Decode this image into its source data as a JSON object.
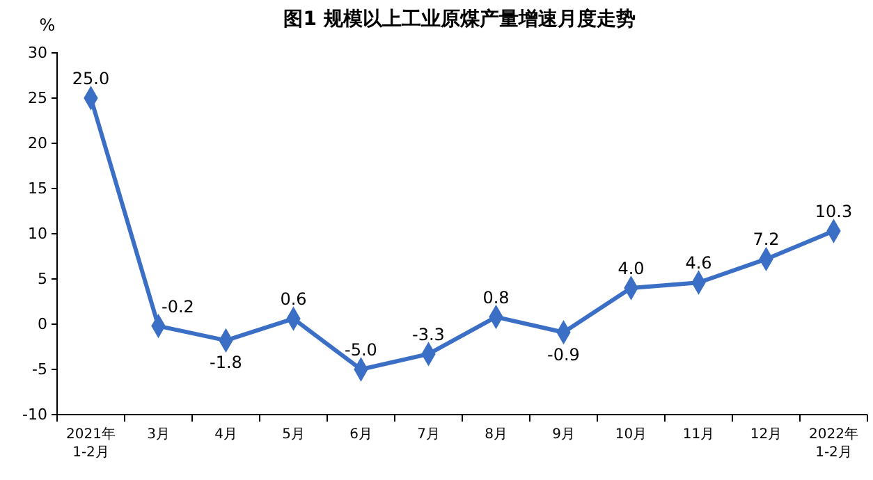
{
  "chart_data": {
    "type": "line",
    "title": "图1  规模以上工业原煤产量增速月度走势",
    "ylabel": "%",
    "categories": [
      "2021年\n1-2月",
      "3月",
      "4月",
      "5月",
      "6月",
      "7月",
      "8月",
      "9月",
      "10月",
      "11月",
      "12月",
      "2022年\n1-2月"
    ],
    "series": [
      {
        "color": "#3b6fc6",
        "values": [
          25.0,
          -0.2,
          -1.8,
          0.6,
          -5.0,
          -3.3,
          0.8,
          -0.9,
          4.0,
          4.6,
          7.2,
          10.3
        ],
        "value_labels": [
          "25.0",
          "-0.2",
          "-1.8",
          "0.6",
          "-5.0",
          "-3.3",
          "0.8",
          "-0.9",
          "4.0",
          "4.6",
          "7.2",
          "10.3"
        ]
      }
    ],
    "ylim": [
      -10,
      30
    ],
    "yticks": [
      -10,
      -5,
      0,
      5,
      10,
      15,
      20,
      25,
      30
    ],
    "grid": false,
    "marker": "diamond",
    "line_style": "solid"
  }
}
